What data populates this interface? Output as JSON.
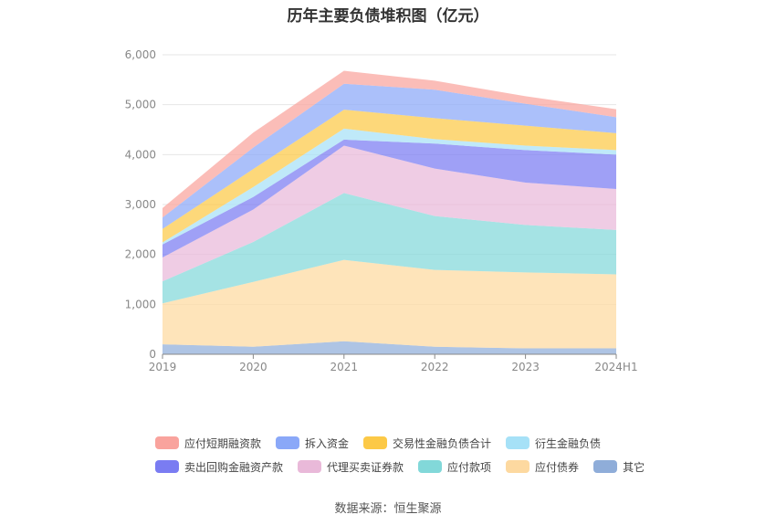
{
  "chart_data": {
    "type": "area",
    "stacked": true,
    "title": "历年主要负债堆积图（亿元）",
    "categories": [
      "2019",
      "2020",
      "2021",
      "2022",
      "2023",
      "2024H1"
    ],
    "y_ticks": [
      "0",
      "1,000",
      "2,000",
      "3,000",
      "4,000",
      "5,000",
      "6,000"
    ],
    "ylim": [
      0,
      6000
    ],
    "grid": true,
    "legend_position": "bottom",
    "series": [
      {
        "name": "其它",
        "color": "#8fadd9",
        "values": [
          200,
          150,
          260,
          150,
          120,
          120
        ]
      },
      {
        "name": "应付债券",
        "color": "#fdd9a0",
        "values": [
          820,
          1300,
          1630,
          1540,
          1520,
          1480
        ]
      },
      {
        "name": "应付款项",
        "color": "#82d8d9",
        "values": [
          440,
          800,
          1340,
          1080,
          950,
          890
        ]
      },
      {
        "name": "代理买卖证券款",
        "color": "#e9b9d9",
        "values": [
          480,
          650,
          950,
          950,
          850,
          820
        ]
      },
      {
        "name": "卖出回购金融资产款",
        "color": "#7a7cf2",
        "values": [
          260,
          250,
          120,
          500,
          650,
          690
        ]
      },
      {
        "name": "衍生金融负债",
        "color": "#a6e1f7",
        "values": [
          40,
          200,
          220,
          90,
          90,
          90
        ]
      },
      {
        "name": "交易性金融负债合计",
        "color": "#fcc947",
        "values": [
          270,
          360,
          380,
          420,
          400,
          340
        ]
      },
      {
        "name": "拆入资金",
        "color": "#8aa8f8",
        "values": [
          230,
          430,
          520,
          570,
          440,
          320
        ]
      },
      {
        "name": "应付短期融资款",
        "color": "#f9a39d",
        "values": [
          190,
          300,
          260,
          180,
          150,
          160
        ]
      }
    ],
    "source": "数据来源：恒生聚源"
  },
  "legend": {
    "rows": [
      [
        {
          "name": "应付短期融资款",
          "color": "#f9a39d"
        },
        {
          "name": "拆入资金",
          "color": "#8aa8f8"
        },
        {
          "name": "交易性金融负债合计",
          "color": "#fcc947"
        },
        {
          "name": "衍生金融负债",
          "color": "#a6e1f7"
        }
      ],
      [
        {
          "name": "卖出回购金融资产款",
          "color": "#7a7cf2"
        },
        {
          "name": "代理买卖证券款",
          "color": "#e9b9d9"
        },
        {
          "name": "应付款项",
          "color": "#82d8d9"
        },
        {
          "name": "应付债券",
          "color": "#fdd9a0"
        },
        {
          "name": "其它",
          "color": "#8fadd9"
        }
      ]
    ]
  }
}
